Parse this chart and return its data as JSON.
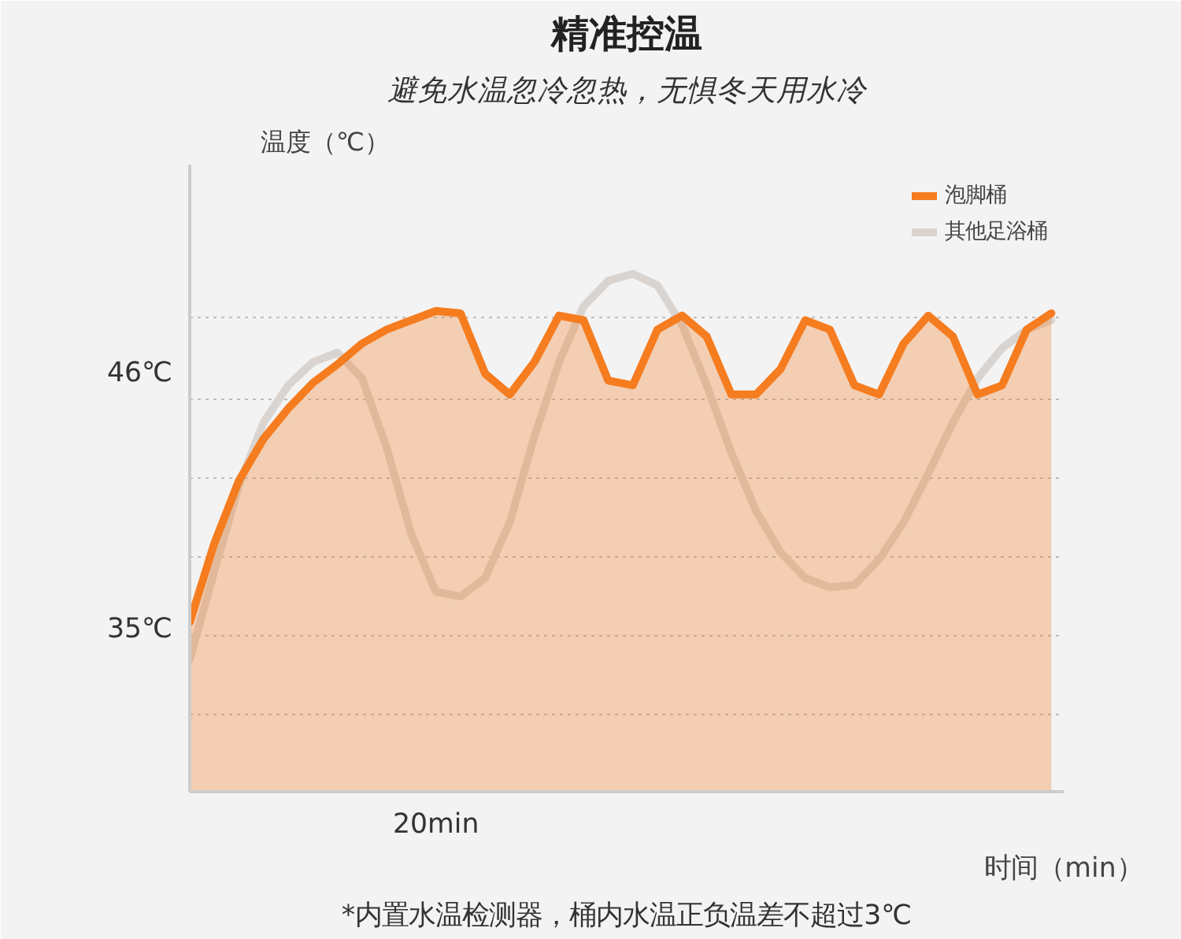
{
  "chart_data": {
    "type": "line",
    "title": "精准控温",
    "subtitle": "避免水温忽冷忽热，无惧冬天用水冷",
    "xlabel": "时间（min）",
    "ylabel": "温度（℃）",
    "annotations": [
      "*内置水温检测器，桶内水温正负温差不超过3℃"
    ],
    "categories": [
      null,
      null,
      null,
      null,
      null,
      null,
      null,
      null,
      null,
      null,
      "20min",
      null,
      null,
      null,
      null,
      null,
      null,
      null,
      null,
      null,
      null,
      null,
      null,
      null,
      null,
      null,
      null,
      null,
      null,
      null,
      null,
      null,
      null,
      null,
      null,
      null
    ],
    "ylim": [
      28,
      55
    ],
    "yticks": [
      {
        "value": 31.3,
        "label": null
      },
      {
        "value": 34.7,
        "label": null
      },
      {
        "value": 35,
        "label": "35℃"
      },
      {
        "value": 38.1,
        "label": null
      },
      {
        "value": 41.5,
        "label": null
      },
      {
        "value": 44.9,
        "label": null
      },
      {
        "value": 46,
        "label": "46℃"
      },
      {
        "value": 48.4,
        "label": null
      }
    ],
    "grid": "y",
    "legend": "top right",
    "marker": "none",
    "line_style": "solid",
    "series": [
      {
        "name": "泡脚桶",
        "type": "area",
        "color": "#f57c1f",
        "values": [
          35.3,
          38.7,
          41.4,
          43.2,
          44.5,
          45.6,
          46.4,
          47.3,
          47.9,
          48.3,
          48.7,
          48.6,
          46.0,
          45.1,
          46.5,
          48.5,
          48.3,
          45.7,
          45.5,
          47.9,
          48.5,
          47.6,
          45.1,
          45.1,
          46.2,
          48.3,
          47.9,
          45.5,
          45.1,
          47.3,
          48.5,
          47.6,
          45.1,
          45.5,
          47.9,
          48.6
        ]
      },
      {
        "name": "其他足浴桶",
        "color": "#d9d4d0",
        "values": [
          33.7,
          37.5,
          41.2,
          43.9,
          45.5,
          46.5,
          46.9,
          45.8,
          42.8,
          39.1,
          36.6,
          36.4,
          37.2,
          39.6,
          43.3,
          46.5,
          48.9,
          50.0,
          50.3,
          49.8,
          48.1,
          45.5,
          42.6,
          40.1,
          38.3,
          37.2,
          36.8,
          36.9,
          38.0,
          39.6,
          41.7,
          43.9,
          45.8,
          47.1,
          47.9,
          48.3
        ]
      }
    ]
  }
}
